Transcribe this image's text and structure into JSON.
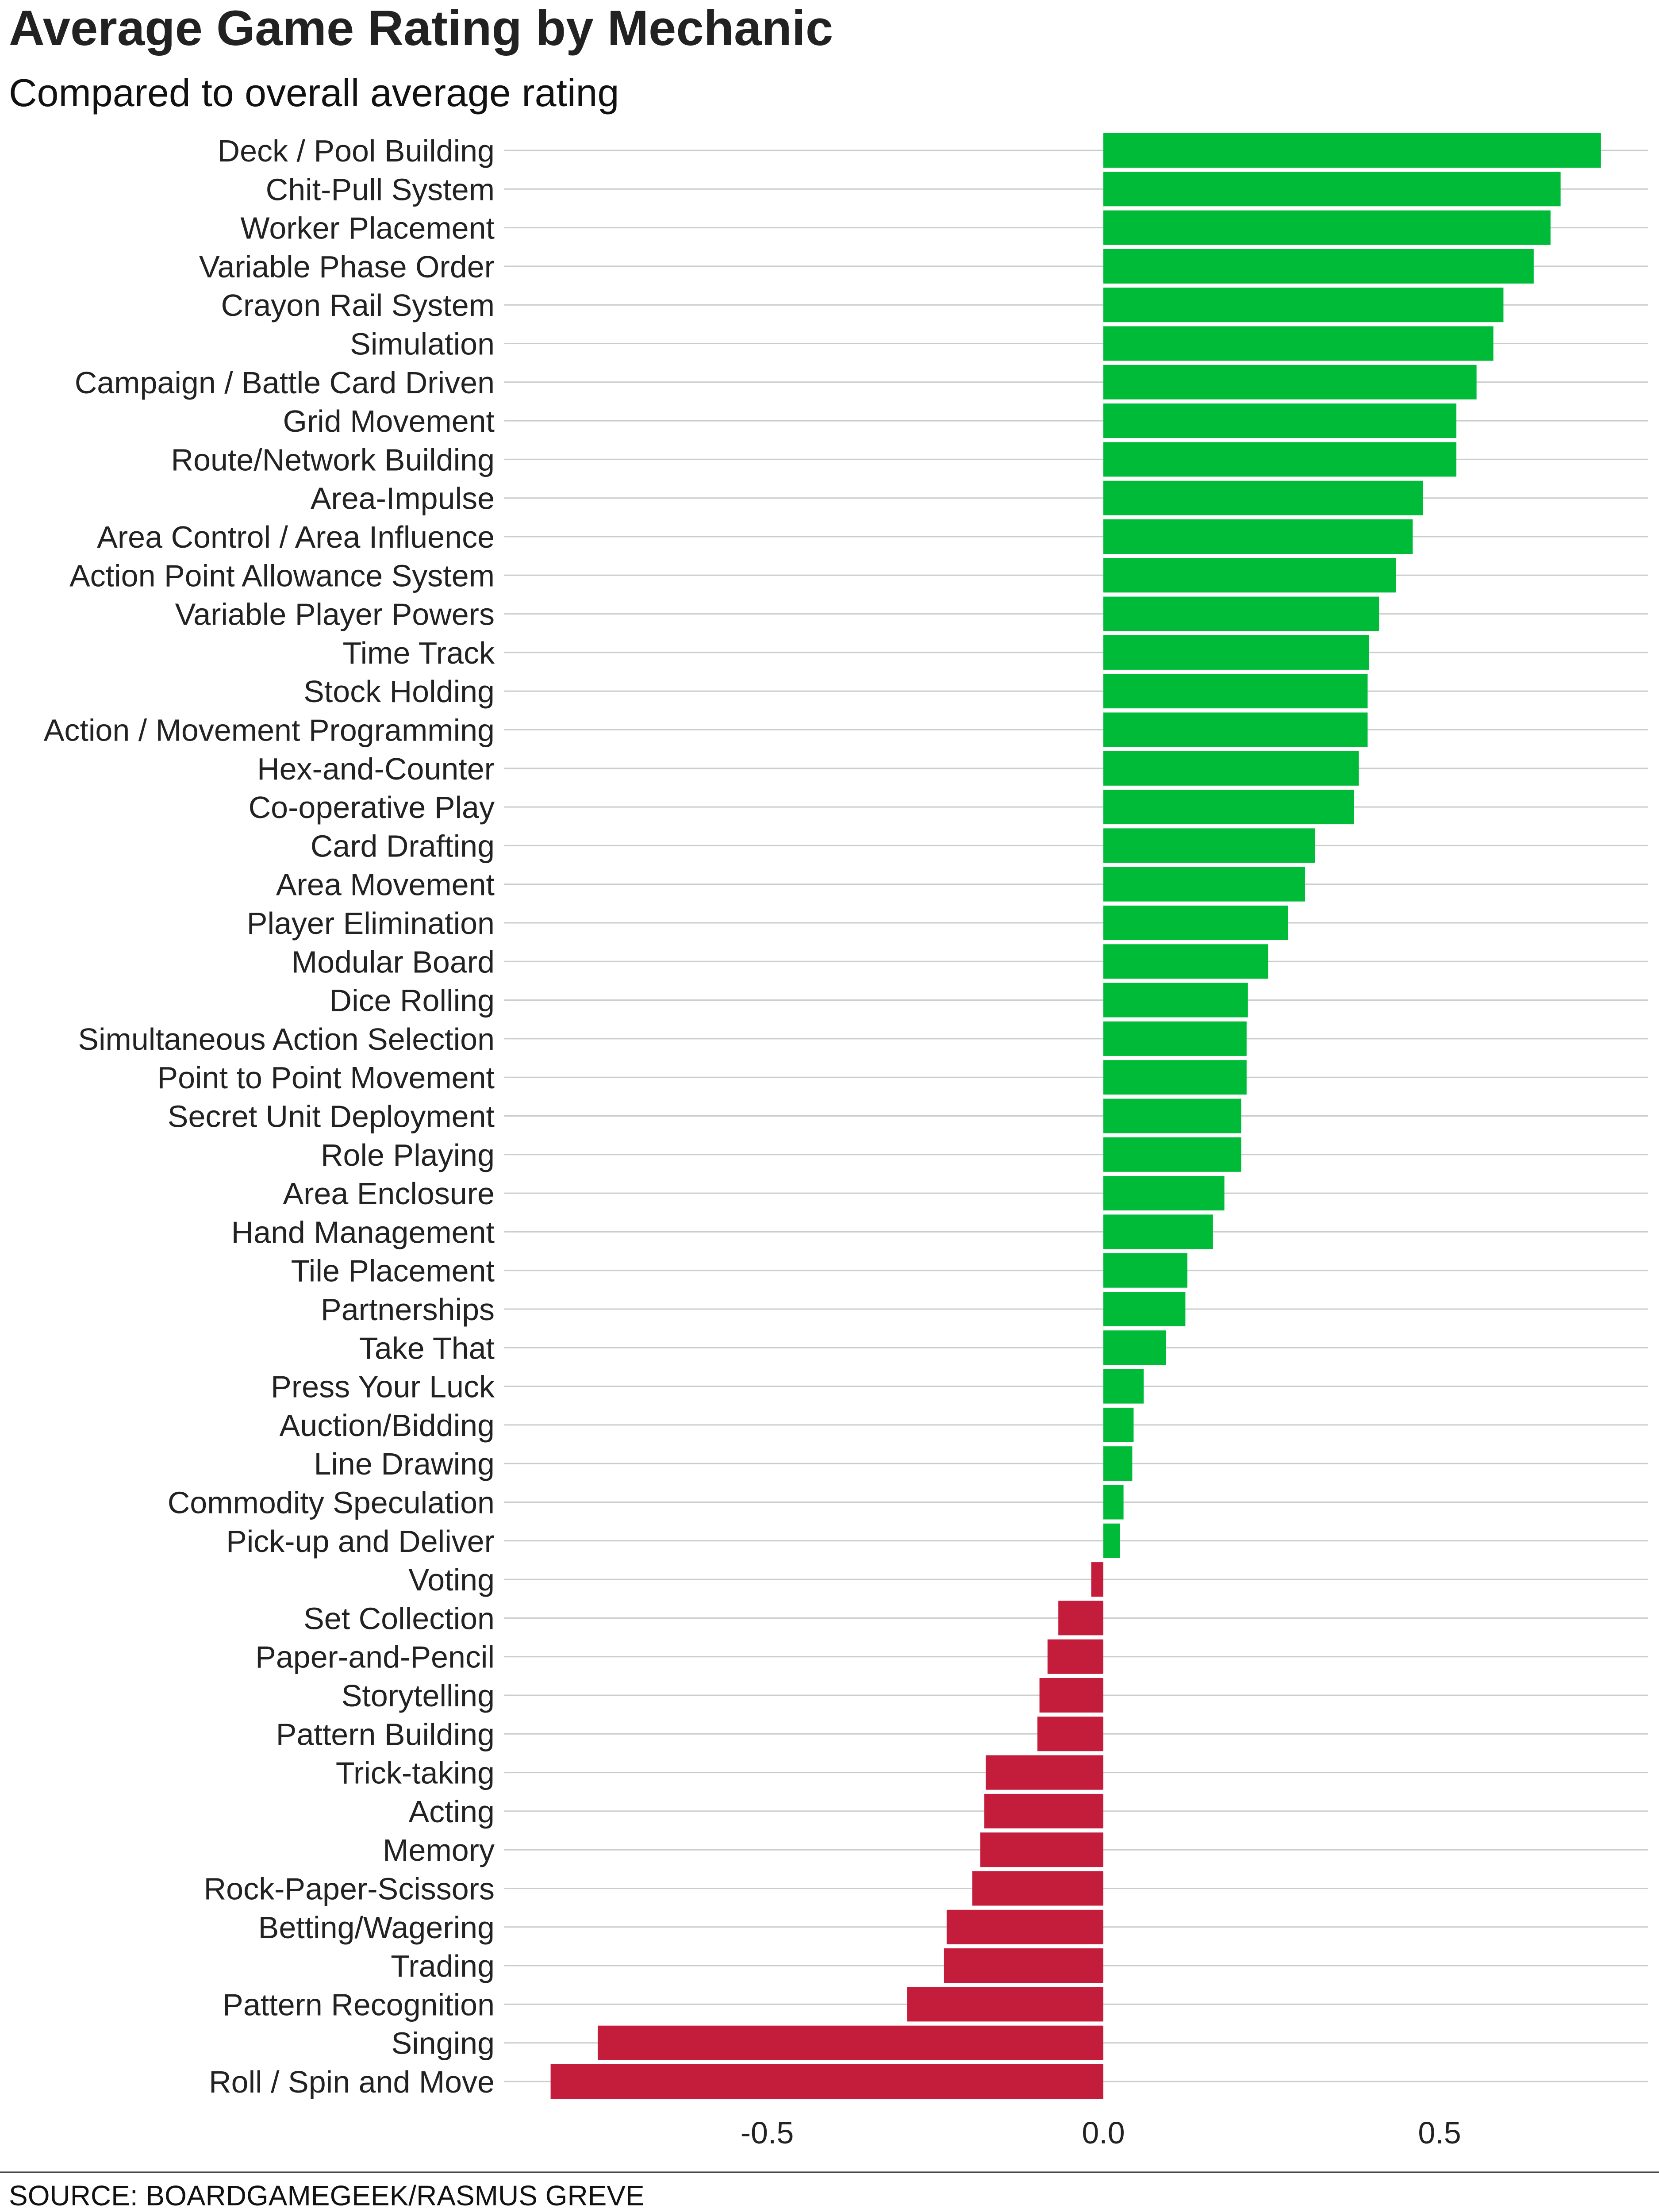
{
  "chart_data": {
    "type": "bar",
    "orientation": "horizontal",
    "title": "Average Game Rating by Mechanic",
    "subtitle": "Compared to overall average rating",
    "source": "SOURCE: BOARDGAMEGEEK/RASMUS GREVE",
    "categories": [
      "Deck / Pool Building",
      "Chit-Pull System",
      "Worker Placement",
      "Variable Phase Order",
      "Crayon Rail System",
      "Simulation",
      "Campaign / Battle Card Driven",
      "Grid Movement",
      "Route/Network Building",
      "Area-Impulse",
      "Area Control / Area Influence",
      "Action Point Allowance System",
      "Variable Player Powers",
      "Time Track",
      "Stock Holding",
      "Action / Movement Programming",
      "Hex-and-Counter",
      "Co-operative Play",
      "Card Drafting",
      "Area Movement",
      "Player Elimination",
      "Modular Board",
      "Dice Rolling",
      "Simultaneous Action Selection",
      "Point to Point Movement",
      "Secret Unit Deployment",
      "Role Playing",
      "Area Enclosure",
      "Hand Management",
      "Tile Placement",
      "Partnerships",
      "Take That",
      "Press Your Luck",
      "Auction/Bidding",
      "Line Drawing",
      "Commodity Speculation",
      "Pick-up and Deliver",
      "Voting",
      "Set Collection",
      "Paper-and-Pencil",
      "Storytelling",
      "Pattern Building",
      "Trick-taking",
      "Acting",
      "Memory",
      "Rock-Paper-Scissors",
      "Betting/Wagering",
      "Trading",
      "Pattern Recognition",
      "Singing",
      "Roll / Spin and Move"
    ],
    "values": [
      0.74,
      0.68,
      0.665,
      0.64,
      0.595,
      0.58,
      0.555,
      0.525,
      0.525,
      0.475,
      0.46,
      0.435,
      0.41,
      0.395,
      0.393,
      0.393,
      0.38,
      0.373,
      0.315,
      0.3,
      0.275,
      0.245,
      0.215,
      0.213,
      0.213,
      0.205,
      0.205,
      0.18,
      0.163,
      0.125,
      0.122,
      0.093,
      0.06,
      0.045,
      0.043,
      0.03,
      0.025,
      -0.018,
      -0.067,
      -0.083,
      -0.095,
      -0.098,
      -0.175,
      -0.177,
      -0.183,
      -0.195,
      -0.233,
      -0.237,
      -0.292,
      -0.752,
      -0.822
    ],
    "xlim": [
      -0.9,
      0.82
    ],
    "xticks": [
      -0.5,
      0.0,
      0.5
    ],
    "xtick_labels": [
      "-0.5",
      "0.0",
      "0.5"
    ],
    "grid": "horizontal lines at each category",
    "colors": {
      "positive": "#00bb38",
      "negative": "#c41c3b"
    }
  }
}
